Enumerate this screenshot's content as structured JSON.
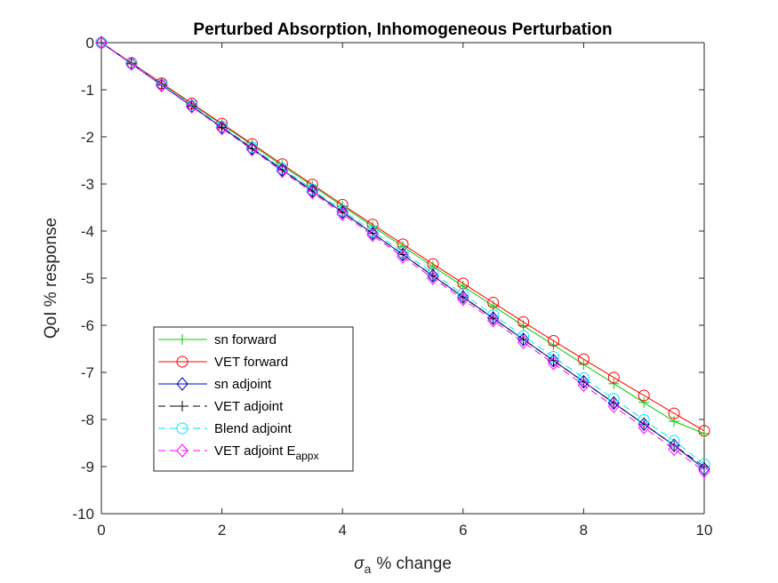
{
  "chart_data": {
    "type": "line",
    "title": "Perturbed Absorption, Inhomogeneous Perturbation",
    "xlabel": {
      "symbol": "σ",
      "subscript": "a",
      "text": "% change"
    },
    "ylabel": "QoI % response",
    "xlim": [
      0,
      10
    ],
    "ylim": [
      -10,
      0
    ],
    "x_ticks": [
      0,
      2,
      4,
      6,
      8,
      10
    ],
    "y_ticks": [
      0,
      -1,
      -2,
      -3,
      -4,
      -5,
      -6,
      -7,
      -8,
      -9,
      -10
    ],
    "grid": false,
    "legend_position": "lower-left",
    "x": [
      0,
      0.5,
      1,
      1.5,
      2,
      2.5,
      3,
      3.5,
      4,
      4.5,
      5,
      5.5,
      6,
      6.5,
      7,
      7.5,
      8,
      8.5,
      9,
      9.5,
      10
    ],
    "series": [
      {
        "name": "sn forward",
        "name_subscript": "",
        "color": "#00cc00",
        "marker": "plus",
        "dash": "solid",
        "values": [
          0,
          -0.43,
          -0.87,
          -1.3,
          -1.74,
          -2.17,
          -2.61,
          -3.04,
          -3.47,
          -3.9,
          -4.33,
          -4.75,
          -5.17,
          -5.59,
          -6.01,
          -6.42,
          -6.83,
          -7.24,
          -7.64,
          -8.04,
          -8.3
        ]
      },
      {
        "name": "VET forward",
        "name_subscript": "",
        "color": "#ff0000",
        "marker": "circle",
        "dash": "solid",
        "values": [
          0,
          -0.43,
          -0.86,
          -1.29,
          -1.72,
          -2.15,
          -2.58,
          -3.01,
          -3.44,
          -3.86,
          -4.28,
          -4.7,
          -5.11,
          -5.52,
          -5.93,
          -6.33,
          -6.72,
          -7.11,
          -7.49,
          -7.87,
          -8.24
        ]
      },
      {
        "name": "sn adjoint",
        "name_subscript": "",
        "color": "#0000cc",
        "marker": "diamond",
        "dash": "solid",
        "values": [
          0,
          -0.45,
          -0.9,
          -1.35,
          -1.8,
          -2.25,
          -2.7,
          -3.15,
          -3.6,
          -4.05,
          -4.5,
          -4.95,
          -5.4,
          -5.85,
          -6.3,
          -6.75,
          -7.2,
          -7.65,
          -8.1,
          -8.55,
          -9.05
        ]
      },
      {
        "name": "VET adjoint",
        "name_subscript": "",
        "color": "#000000",
        "marker": "plus",
        "dash": "dashed",
        "values": [
          0,
          -0.45,
          -0.9,
          -1.35,
          -1.8,
          -2.25,
          -2.7,
          -3.15,
          -3.6,
          -4.05,
          -4.5,
          -4.95,
          -5.4,
          -5.85,
          -6.3,
          -6.75,
          -7.2,
          -7.65,
          -8.1,
          -8.55,
          -9.0
        ]
      },
      {
        "name": "Blend adjoint",
        "name_subscript": "",
        "color": "#00e5ff",
        "marker": "circle",
        "dash": "dashed",
        "values": [
          0,
          -0.44,
          -0.89,
          -1.33,
          -1.78,
          -2.22,
          -2.67,
          -3.11,
          -3.56,
          -4.0,
          -4.45,
          -4.89,
          -5.34,
          -5.78,
          -6.23,
          -6.67,
          -7.12,
          -7.56,
          -8.01,
          -8.45,
          -8.95
        ]
      },
      {
        "name": "VET adjoint E",
        "name_subscript": "appx",
        "color": "#ff00ff",
        "marker": "diamond",
        "dash": "dashed",
        "values": [
          0,
          -0.45,
          -0.91,
          -1.36,
          -1.82,
          -2.27,
          -2.73,
          -3.18,
          -3.64,
          -4.09,
          -4.55,
          -5.0,
          -5.45,
          -5.9,
          -6.36,
          -6.81,
          -7.27,
          -7.72,
          -8.17,
          -8.63,
          -9.1
        ]
      }
    ]
  }
}
